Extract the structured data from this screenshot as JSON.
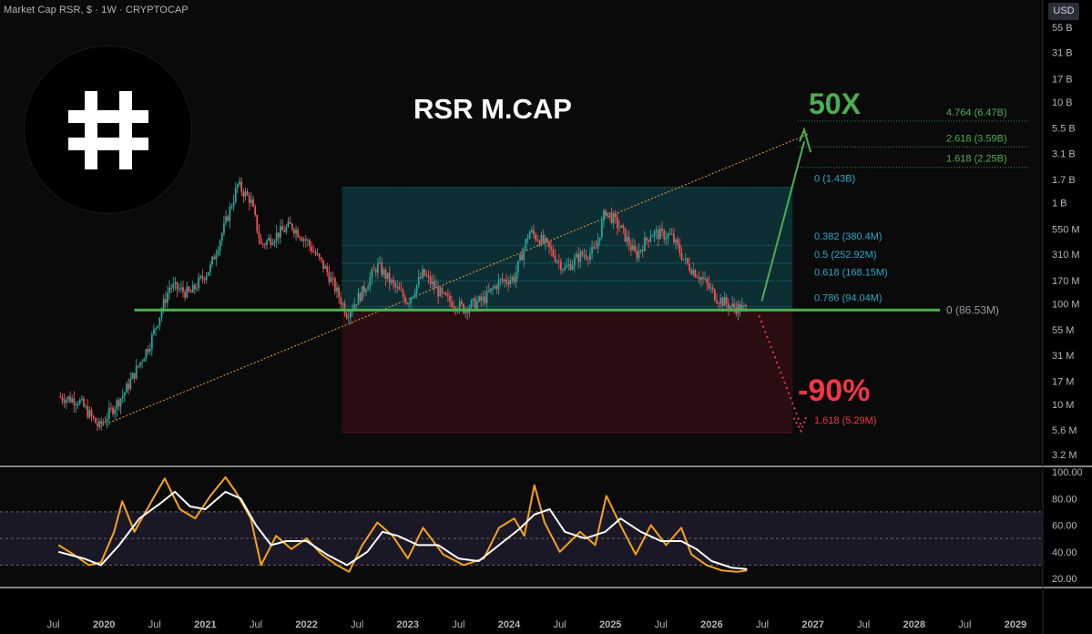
{
  "header": {
    "label": "Market Cap RSR, $ · 1W · CRYPTOCAP",
    "currency_button": "USD"
  },
  "logo": {
    "icon": "hash-icon"
  },
  "annotations": {
    "title": "RSR M.CAP",
    "upside": "50X",
    "downside": "-90%"
  },
  "colors": {
    "up": "#4caf50",
    "down": "#f23645",
    "fib_teal": "#2aa8c8",
    "rsi": "#f7a21b",
    "rsi_ma": "#ffffff",
    "support": "#4caf50",
    "trend": "#f0a040"
  },
  "chart_data": [
    {
      "type": "candlestick",
      "title": "RSR M.CAP",
      "y_scale": "log",
      "x_axis_labels": [
        "Jul",
        "2020",
        "Jul",
        "2021",
        "Jul",
        "2022",
        "Jul",
        "2023",
        "Jul",
        "2024",
        "Jul",
        "2025",
        "Jul",
        "2026",
        "Jul",
        "2027",
        "Jul",
        "2028",
        "Jul",
        "2029"
      ],
      "y_axis_labels": [
        "55 B",
        "31 B",
        "17 B",
        "10 B",
        "5.5 B",
        "3.1 B",
        "1.7 B",
        "1 B",
        "550 M",
        "310 M",
        "170 M",
        "100 M",
        "55 M",
        "31 M",
        "17 M",
        "10 M",
        "5.6 M",
        "3.2 M"
      ],
      "price_path": [
        {
          "t": 2019.55,
          "v": 12
        },
        {
          "t": 2019.75,
          "v": 11
        },
        {
          "t": 2019.95,
          "v": 6
        },
        {
          "t": 2020.2,
          "v": 13
        },
        {
          "t": 2020.45,
          "v": 40
        },
        {
          "t": 2020.65,
          "v": 150
        },
        {
          "t": 2020.85,
          "v": 125
        },
        {
          "t": 2021.05,
          "v": 230
        },
        {
          "t": 2021.2,
          "v": 630
        },
        {
          "t": 2021.32,
          "v": 1500
        },
        {
          "t": 2021.45,
          "v": 1050
        },
        {
          "t": 2021.55,
          "v": 380
        },
        {
          "t": 2021.7,
          "v": 480
        },
        {
          "t": 2021.85,
          "v": 600
        },
        {
          "t": 2022.0,
          "v": 420
        },
        {
          "t": 2022.2,
          "v": 210
        },
        {
          "t": 2022.4,
          "v": 80
        },
        {
          "t": 2022.55,
          "v": 130
        },
        {
          "t": 2022.7,
          "v": 240
        },
        {
          "t": 2022.85,
          "v": 155
        },
        {
          "t": 2023.0,
          "v": 105
        },
        {
          "t": 2023.15,
          "v": 200
        },
        {
          "t": 2023.35,
          "v": 115
        },
        {
          "t": 2023.55,
          "v": 90
        },
        {
          "t": 2023.75,
          "v": 110
        },
        {
          "t": 2023.9,
          "v": 165
        },
        {
          "t": 2024.05,
          "v": 180
        },
        {
          "t": 2024.2,
          "v": 520
        },
        {
          "t": 2024.35,
          "v": 400
        },
        {
          "t": 2024.55,
          "v": 220
        },
        {
          "t": 2024.7,
          "v": 300
        },
        {
          "t": 2024.85,
          "v": 330
        },
        {
          "t": 2024.95,
          "v": 850
        },
        {
          "t": 2025.1,
          "v": 560
        },
        {
          "t": 2025.25,
          "v": 300
        },
        {
          "t": 2025.4,
          "v": 500
        },
        {
          "t": 2025.6,
          "v": 470
        },
        {
          "t": 2025.75,
          "v": 250
        },
        {
          "t": 2025.9,
          "v": 180
        },
        {
          "t": 2026.05,
          "v": 115
        },
        {
          "t": 2026.2,
          "v": 93
        },
        {
          "t": 2026.35,
          "v": 88
        }
      ],
      "support_line": {
        "value": 86.53,
        "label": "0 (86.53M)"
      },
      "fib_levels": [
        {
          "label": "4.764 (6.47B)",
          "value": 6470,
          "group": "up"
        },
        {
          "label": "2.618 (3.59B)",
          "value": 3590,
          "group": "up"
        },
        {
          "label": "1.618 (2.25B)",
          "value": 2250,
          "group": "up"
        },
        {
          "label": "0 (1.43B)",
          "value": 1430,
          "group": "range"
        },
        {
          "label": "0.382 (380.4M)",
          "value": 380.4,
          "group": "range"
        },
        {
          "label": "0.5 (252.92M)",
          "value": 252.92,
          "group": "range"
        },
        {
          "label": "0.618 (168.15M)",
          "value": 168.15,
          "group": "range"
        },
        {
          "label": "0.786 (94.04M)",
          "value": 94.04,
          "group": "range"
        },
        {
          "label": "1.618 (5.29M)",
          "value": 5.29,
          "group": "down"
        }
      ],
      "trend_line": {
        "from": {
          "t": 2019.95,
          "v": 6
        },
        "to": {
          "t": 2026.95,
          "v": 4800
        }
      },
      "projection_up": {
        "from": {
          "t": 2026.45,
          "v": 100
        },
        "to": {
          "t": 2026.95,
          "v": 4800
        }
      },
      "projection_down": {
        "from": {
          "t": 2026.45,
          "v": 90
        },
        "to": {
          "t": 2026.9,
          "v": 5.5
        }
      }
    },
    {
      "type": "line",
      "title": "RSI",
      "y_axis_labels": [
        "100.00",
        "80.00",
        "60.00",
        "40.00",
        "20.00"
      ],
      "ylim": [
        0,
        100
      ],
      "bands": [
        30,
        50,
        70
      ],
      "series": [
        {
          "role": "rsi",
          "points": [
            {
              "t": 2019.55,
              "v": 45
            },
            {
              "t": 2019.7,
              "v": 38
            },
            {
              "t": 2019.85,
              "v": 30
            },
            {
              "t": 2019.97,
              "v": 32
            },
            {
              "t": 2020.1,
              "v": 55
            },
            {
              "t": 2020.18,
              "v": 78
            },
            {
              "t": 2020.3,
              "v": 55
            },
            {
              "t": 2020.5,
              "v": 82
            },
            {
              "t": 2020.6,
              "v": 95
            },
            {
              "t": 2020.75,
              "v": 72
            },
            {
              "t": 2020.9,
              "v": 65
            },
            {
              "t": 2021.05,
              "v": 82
            },
            {
              "t": 2021.2,
              "v": 96
            },
            {
              "t": 2021.3,
              "v": 85
            },
            {
              "t": 2021.45,
              "v": 65
            },
            {
              "t": 2021.55,
              "v": 30
            },
            {
              "t": 2021.7,
              "v": 52
            },
            {
              "t": 2021.85,
              "v": 42
            },
            {
              "t": 2022.0,
              "v": 50
            },
            {
              "t": 2022.15,
              "v": 38
            },
            {
              "t": 2022.3,
              "v": 30
            },
            {
              "t": 2022.42,
              "v": 25
            },
            {
              "t": 2022.55,
              "v": 45
            },
            {
              "t": 2022.7,
              "v": 62
            },
            {
              "t": 2022.85,
              "v": 52
            },
            {
              "t": 2023.0,
              "v": 35
            },
            {
              "t": 2023.15,
              "v": 58
            },
            {
              "t": 2023.35,
              "v": 38
            },
            {
              "t": 2023.55,
              "v": 30
            },
            {
              "t": 2023.75,
              "v": 35
            },
            {
              "t": 2023.9,
              "v": 58
            },
            {
              "t": 2024.05,
              "v": 65
            },
            {
              "t": 2024.15,
              "v": 52
            },
            {
              "t": 2024.25,
              "v": 90
            },
            {
              "t": 2024.35,
              "v": 62
            },
            {
              "t": 2024.5,
              "v": 40
            },
            {
              "t": 2024.7,
              "v": 55
            },
            {
              "t": 2024.85,
              "v": 45
            },
            {
              "t": 2024.96,
              "v": 82
            },
            {
              "t": 2025.1,
              "v": 60
            },
            {
              "t": 2025.25,
              "v": 38
            },
            {
              "t": 2025.4,
              "v": 60
            },
            {
              "t": 2025.55,
              "v": 45
            },
            {
              "t": 2025.7,
              "v": 58
            },
            {
              "t": 2025.8,
              "v": 38
            },
            {
              "t": 2025.95,
              "v": 30
            },
            {
              "t": 2026.1,
              "v": 26
            },
            {
              "t": 2026.25,
              "v": 25
            },
            {
              "t": 2026.35,
              "v": 26
            }
          ]
        },
        {
          "role": "rsi_ma",
          "points": [
            {
              "t": 2019.55,
              "v": 40
            },
            {
              "t": 2019.8,
              "v": 35
            },
            {
              "t": 2019.97,
              "v": 30
            },
            {
              "t": 2020.15,
              "v": 45
            },
            {
              "t": 2020.35,
              "v": 65
            },
            {
              "t": 2020.55,
              "v": 76
            },
            {
              "t": 2020.7,
              "v": 85
            },
            {
              "t": 2020.85,
              "v": 74
            },
            {
              "t": 2021.0,
              "v": 72
            },
            {
              "t": 2021.2,
              "v": 85
            },
            {
              "t": 2021.35,
              "v": 80
            },
            {
              "t": 2021.5,
              "v": 60
            },
            {
              "t": 2021.65,
              "v": 45
            },
            {
              "t": 2021.8,
              "v": 48
            },
            {
              "t": 2022.0,
              "v": 48
            },
            {
              "t": 2022.2,
              "v": 38
            },
            {
              "t": 2022.4,
              "v": 30
            },
            {
              "t": 2022.6,
              "v": 40
            },
            {
              "t": 2022.75,
              "v": 55
            },
            {
              "t": 2022.9,
              "v": 52
            },
            {
              "t": 2023.1,
              "v": 45
            },
            {
              "t": 2023.3,
              "v": 45
            },
            {
              "t": 2023.5,
              "v": 35
            },
            {
              "t": 2023.7,
              "v": 33
            },
            {
              "t": 2023.9,
              "v": 45
            },
            {
              "t": 2024.1,
              "v": 57
            },
            {
              "t": 2024.25,
              "v": 68
            },
            {
              "t": 2024.4,
              "v": 72
            },
            {
              "t": 2024.55,
              "v": 55
            },
            {
              "t": 2024.75,
              "v": 50
            },
            {
              "t": 2024.95,
              "v": 55
            },
            {
              "t": 2025.1,
              "v": 65
            },
            {
              "t": 2025.3,
              "v": 55
            },
            {
              "t": 2025.5,
              "v": 48
            },
            {
              "t": 2025.7,
              "v": 48
            },
            {
              "t": 2025.85,
              "v": 42
            },
            {
              "t": 2026.0,
              "v": 33
            },
            {
              "t": 2026.2,
              "v": 28
            },
            {
              "t": 2026.35,
              "v": 27
            }
          ]
        }
      ]
    }
  ]
}
